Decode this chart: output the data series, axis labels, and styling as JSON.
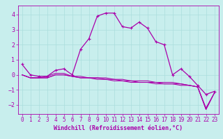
{
  "xlabel": "Windchill (Refroidissement éolien,°C)",
  "bg_color": "#c8eeed",
  "line_color": "#aa00aa",
  "grid_color": "#aadddd",
  "xlim": [
    -0.5,
    23.5
  ],
  "ylim": [
    -2.6,
    4.6
  ],
  "yticks": [
    -2,
    -1,
    0,
    1,
    2,
    3,
    4
  ],
  "xticks": [
    0,
    1,
    2,
    3,
    4,
    5,
    6,
    7,
    8,
    9,
    10,
    11,
    12,
    13,
    14,
    15,
    16,
    17,
    18,
    19,
    20,
    21,
    22,
    23
  ],
  "series": [
    [
      0.7,
      0.0,
      -0.1,
      -0.1,
      0.3,
      0.4,
      0.0,
      1.7,
      2.4,
      3.9,
      4.1,
      4.1,
      3.2,
      3.1,
      3.5,
      3.1,
      2.2,
      2.0,
      0.0,
      0.4,
      -0.1,
      -0.7,
      -1.3,
      -1.1
    ],
    [
      0.0,
      -0.2,
      -0.2,
      -0.1,
      0.1,
      0.1,
      -0.1,
      -0.1,
      -0.2,
      -0.2,
      -0.2,
      -0.3,
      -0.3,
      -0.4,
      -0.4,
      -0.4,
      -0.5,
      -0.5,
      -0.5,
      -0.6,
      -0.7,
      -0.8,
      -2.2,
      -1.2
    ],
    [
      0.0,
      -0.2,
      -0.2,
      -0.2,
      0.0,
      0.0,
      -0.1,
      -0.2,
      -0.2,
      -0.2,
      -0.3,
      -0.3,
      -0.4,
      -0.4,
      -0.5,
      -0.5,
      -0.5,
      -0.6,
      -0.6,
      -0.6,
      -0.7,
      -0.8,
      -2.3,
      -1.2
    ],
    [
      0.0,
      -0.2,
      -0.2,
      -0.2,
      0.0,
      0.0,
      -0.1,
      -0.2,
      -0.2,
      -0.3,
      -0.3,
      -0.4,
      -0.4,
      -0.5,
      -0.5,
      -0.5,
      -0.6,
      -0.6,
      -0.6,
      -0.7,
      -0.7,
      -0.8,
      -2.3,
      -1.2
    ]
  ],
  "marker_series": 0,
  "xlabel_fontsize": 6,
  "tick_fontsize": 5.5,
  "linewidth": 0.9,
  "markersize": 3.5
}
